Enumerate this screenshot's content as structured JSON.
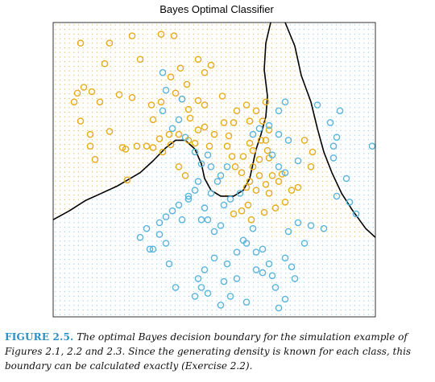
{
  "colors": {
    "orange": "#e6ac1c",
    "blue": "#5ab4dc",
    "orange_grid": "#e2b64c",
    "blue_grid": "#8fcbe6",
    "boundary": "#000000",
    "caption_label": "#2a8fc4"
  },
  "caption": {
    "label": "FIGURE 2.5.",
    "text": " The optimal Bayes decision boundary for the simulation example of Figures 2.1, 2.2 and 2.3. Since the generating density is known for each class, this boundary can be calculated exactly (Exercise 2.2)."
  },
  "chart_data": {
    "type": "scatter",
    "title": "Bayes Optimal Classifier",
    "xlabel": "",
    "ylabel": "",
    "xlim": [
      0,
      1
    ],
    "ylim": [
      0,
      1
    ],
    "axes_ticks": false,
    "background": "dotted grid colored by predicted class",
    "series": [
      {
        "color": "#e6ac1c",
        "points": [
          [
            0.085,
            0.93
          ],
          [
            0.175,
            0.93
          ],
          [
            0.245,
            0.955
          ],
          [
            0.335,
            0.96
          ],
          [
            0.375,
            0.955
          ],
          [
            0.16,
            0.86
          ],
          [
            0.27,
            0.875
          ],
          [
            0.45,
            0.875
          ],
          [
            0.47,
            0.83
          ],
          [
            0.49,
            0.855
          ],
          [
            0.395,
            0.845
          ],
          [
            0.365,
            0.815
          ],
          [
            0.415,
            0.79
          ],
          [
            0.12,
            0.765
          ],
          [
            0.075,
            0.76
          ],
          [
            0.095,
            0.78
          ],
          [
            0.065,
            0.73
          ],
          [
            0.145,
            0.73
          ],
          [
            0.205,
            0.755
          ],
          [
            0.245,
            0.745
          ],
          [
            0.305,
            0.72
          ],
          [
            0.335,
            0.73
          ],
          [
            0.38,
            0.76
          ],
          [
            0.4,
            0.74
          ],
          [
            0.42,
            0.705
          ],
          [
            0.45,
            0.735
          ],
          [
            0.47,
            0.72
          ],
          [
            0.525,
            0.75
          ],
          [
            0.425,
            0.675
          ],
          [
            0.085,
            0.665
          ],
          [
            0.115,
            0.62
          ],
          [
            0.175,
            0.63
          ],
          [
            0.215,
            0.575
          ],
          [
            0.33,
            0.605
          ],
          [
            0.31,
            0.67
          ],
          [
            0.26,
            0.58
          ],
          [
            0.29,
            0.58
          ],
          [
            0.31,
            0.575
          ],
          [
            0.34,
            0.56
          ],
          [
            0.365,
            0.585
          ],
          [
            0.36,
            0.62
          ],
          [
            0.39,
            0.62
          ],
          [
            0.42,
            0.6
          ],
          [
            0.44,
            0.59
          ],
          [
            0.45,
            0.635
          ],
          [
            0.47,
            0.645
          ],
          [
            0.485,
            0.58
          ],
          [
            0.5,
            0.62
          ],
          [
            0.53,
            0.66
          ],
          [
            0.545,
            0.615
          ],
          [
            0.56,
            0.66
          ],
          [
            0.57,
            0.7
          ],
          [
            0.6,
            0.72
          ],
          [
            0.61,
            0.665
          ],
          [
            0.63,
            0.7
          ],
          [
            0.66,
            0.73
          ],
          [
            0.65,
            0.665
          ],
          [
            0.54,
            0.58
          ],
          [
            0.555,
            0.545
          ],
          [
            0.565,
            0.51
          ],
          [
            0.59,
            0.545
          ],
          [
            0.61,
            0.59
          ],
          [
            0.62,
            0.565
          ],
          [
            0.62,
            0.51
          ],
          [
            0.64,
            0.535
          ],
          [
            0.645,
            0.6
          ],
          [
            0.66,
            0.6
          ],
          [
            0.67,
            0.635
          ],
          [
            0.67,
            0.54
          ],
          [
            0.68,
            0.48
          ],
          [
            0.7,
            0.46
          ],
          [
            0.66,
            0.45
          ],
          [
            0.63,
            0.43
          ],
          [
            0.64,
            0.48
          ],
          [
            0.61,
            0.46
          ],
          [
            0.39,
            0.51
          ],
          [
            0.41,
            0.48
          ],
          [
            0.23,
            0.465
          ],
          [
            0.13,
            0.535
          ],
          [
            0.115,
            0.58
          ],
          [
            0.225,
            0.57
          ],
          [
            0.585,
            0.49
          ],
          [
            0.6,
            0.44
          ],
          [
            0.605,
            0.38
          ],
          [
            0.585,
            0.36
          ],
          [
            0.56,
            0.35
          ],
          [
            0.615,
            0.33
          ],
          [
            0.78,
            0.6
          ],
          [
            0.805,
            0.56
          ],
          [
            0.8,
            0.51
          ],
          [
            0.655,
            0.355
          ],
          [
            0.69,
            0.37
          ],
          [
            0.72,
            0.39
          ],
          [
            0.74,
            0.43
          ],
          [
            0.76,
            0.44
          ],
          [
            0.67,
            0.42
          ],
          [
            0.71,
            0.485
          ],
          [
            0.665,
            0.565
          ]
        ]
      },
      {
        "color": "#5ab4dc",
        "points": [
          [
            0.34,
            0.83
          ],
          [
            0.39,
            0.67
          ],
          [
            0.37,
            0.64
          ],
          [
            0.41,
            0.61
          ],
          [
            0.44,
            0.56
          ],
          [
            0.48,
            0.55
          ],
          [
            0.49,
            0.51
          ],
          [
            0.52,
            0.48
          ],
          [
            0.45,
            0.46
          ],
          [
            0.44,
            0.43
          ],
          [
            0.42,
            0.4
          ],
          [
            0.39,
            0.38
          ],
          [
            0.4,
            0.33
          ],
          [
            0.37,
            0.36
          ],
          [
            0.35,
            0.34
          ],
          [
            0.33,
            0.28
          ],
          [
            0.29,
            0.3
          ],
          [
            0.27,
            0.27
          ],
          [
            0.31,
            0.23
          ],
          [
            0.46,
            0.33
          ],
          [
            0.47,
            0.37
          ],
          [
            0.48,
            0.33
          ],
          [
            0.5,
            0.29
          ],
          [
            0.52,
            0.31
          ],
          [
            0.53,
            0.38
          ],
          [
            0.55,
            0.4
          ],
          [
            0.58,
            0.42
          ],
          [
            0.59,
            0.26
          ],
          [
            0.57,
            0.22
          ],
          [
            0.54,
            0.18
          ],
          [
            0.5,
            0.2
          ],
          [
            0.47,
            0.16
          ],
          [
            0.45,
            0.13
          ],
          [
            0.46,
            0.1
          ],
          [
            0.48,
            0.08
          ],
          [
            0.44,
            0.07
          ],
          [
            0.38,
            0.1
          ],
          [
            0.3,
            0.23
          ],
          [
            0.33,
            0.32
          ],
          [
            0.35,
            0.25
          ],
          [
            0.36,
            0.18
          ],
          [
            0.62,
            0.3
          ],
          [
            0.6,
            0.25
          ],
          [
            0.63,
            0.22
          ],
          [
            0.65,
            0.23
          ],
          [
            0.67,
            0.18
          ],
          [
            0.68,
            0.14
          ],
          [
            0.69,
            0.1
          ],
          [
            0.72,
            0.06
          ],
          [
            0.7,
            0.03
          ],
          [
            0.63,
            0.16
          ],
          [
            0.65,
            0.15
          ],
          [
            0.57,
            0.13
          ],
          [
            0.55,
            0.07
          ],
          [
            0.6,
            0.05
          ],
          [
            0.52,
            0.04
          ],
          [
            0.53,
            0.12
          ],
          [
            0.62,
            0.62
          ],
          [
            0.64,
            0.64
          ],
          [
            0.67,
            0.65
          ],
          [
            0.7,
            0.62
          ],
          [
            0.73,
            0.6
          ],
          [
            0.68,
            0.55
          ],
          [
            0.7,
            0.51
          ],
          [
            0.72,
            0.49
          ],
          [
            0.76,
            0.53
          ],
          [
            0.76,
            0.32
          ],
          [
            0.73,
            0.29
          ],
          [
            0.72,
            0.2
          ],
          [
            0.74,
            0.17
          ],
          [
            0.75,
            0.13
          ],
          [
            0.78,
            0.25
          ],
          [
            0.8,
            0.31
          ],
          [
            0.84,
            0.3
          ],
          [
            0.88,
            0.41
          ],
          [
            0.92,
            0.39
          ],
          [
            0.87,
            0.54
          ],
          [
            0.88,
            0.61
          ],
          [
            0.89,
            0.7
          ],
          [
            0.86,
            0.66
          ],
          [
            0.87,
            0.58
          ],
          [
            0.91,
            0.47
          ],
          [
            0.94,
            0.35
          ],
          [
            0.99,
            0.58
          ],
          [
            0.7,
            0.7
          ],
          [
            0.72,
            0.73
          ],
          [
            0.82,
            0.72
          ],
          [
            0.4,
            0.74
          ],
          [
            0.35,
            0.77
          ],
          [
            0.42,
            0.41
          ],
          [
            0.46,
            0.52
          ],
          [
            0.51,
            0.46
          ],
          [
            0.49,
            0.42
          ],
          [
            0.54,
            0.51
          ],
          [
            0.34,
            0.7
          ]
        ]
      }
    ],
    "boundary": [
      [
        0,
        0.33
      ],
      [
        0.05,
        0.36
      ],
      [
        0.1,
        0.395
      ],
      [
        0.15,
        0.42
      ],
      [
        0.2,
        0.445
      ],
      [
        0.27,
        0.49
      ],
      [
        0.31,
        0.53
      ],
      [
        0.35,
        0.575
      ],
      [
        0.38,
        0.6
      ],
      [
        0.41,
        0.6
      ],
      [
        0.44,
        0.57
      ],
      [
        0.46,
        0.52
      ],
      [
        0.47,
        0.47
      ],
      [
        0.49,
        0.43
      ],
      [
        0.52,
        0.41
      ],
      [
        0.56,
        0.41
      ],
      [
        0.59,
        0.43
      ],
      [
        0.61,
        0.47
      ],
      [
        0.62,
        0.52
      ],
      [
        0.63,
        0.57
      ],
      [
        0.645,
        0.62
      ],
      [
        0.66,
        0.68
      ],
      [
        0.665,
        0.75
      ],
      [
        0.655,
        0.84
      ],
      [
        0.66,
        0.93
      ],
      [
        0.675,
        1.0
      ]
    ],
    "boundary2": [
      [
        0.72,
        1.0
      ],
      [
        0.75,
        0.92
      ],
      [
        0.77,
        0.82
      ],
      [
        0.8,
        0.73
      ],
      [
        0.82,
        0.64
      ],
      [
        0.84,
        0.56
      ],
      [
        0.865,
        0.49
      ],
      [
        0.895,
        0.42
      ],
      [
        0.93,
        0.36
      ],
      [
        0.97,
        0.3
      ],
      [
        1.0,
        0.27
      ]
    ]
  }
}
